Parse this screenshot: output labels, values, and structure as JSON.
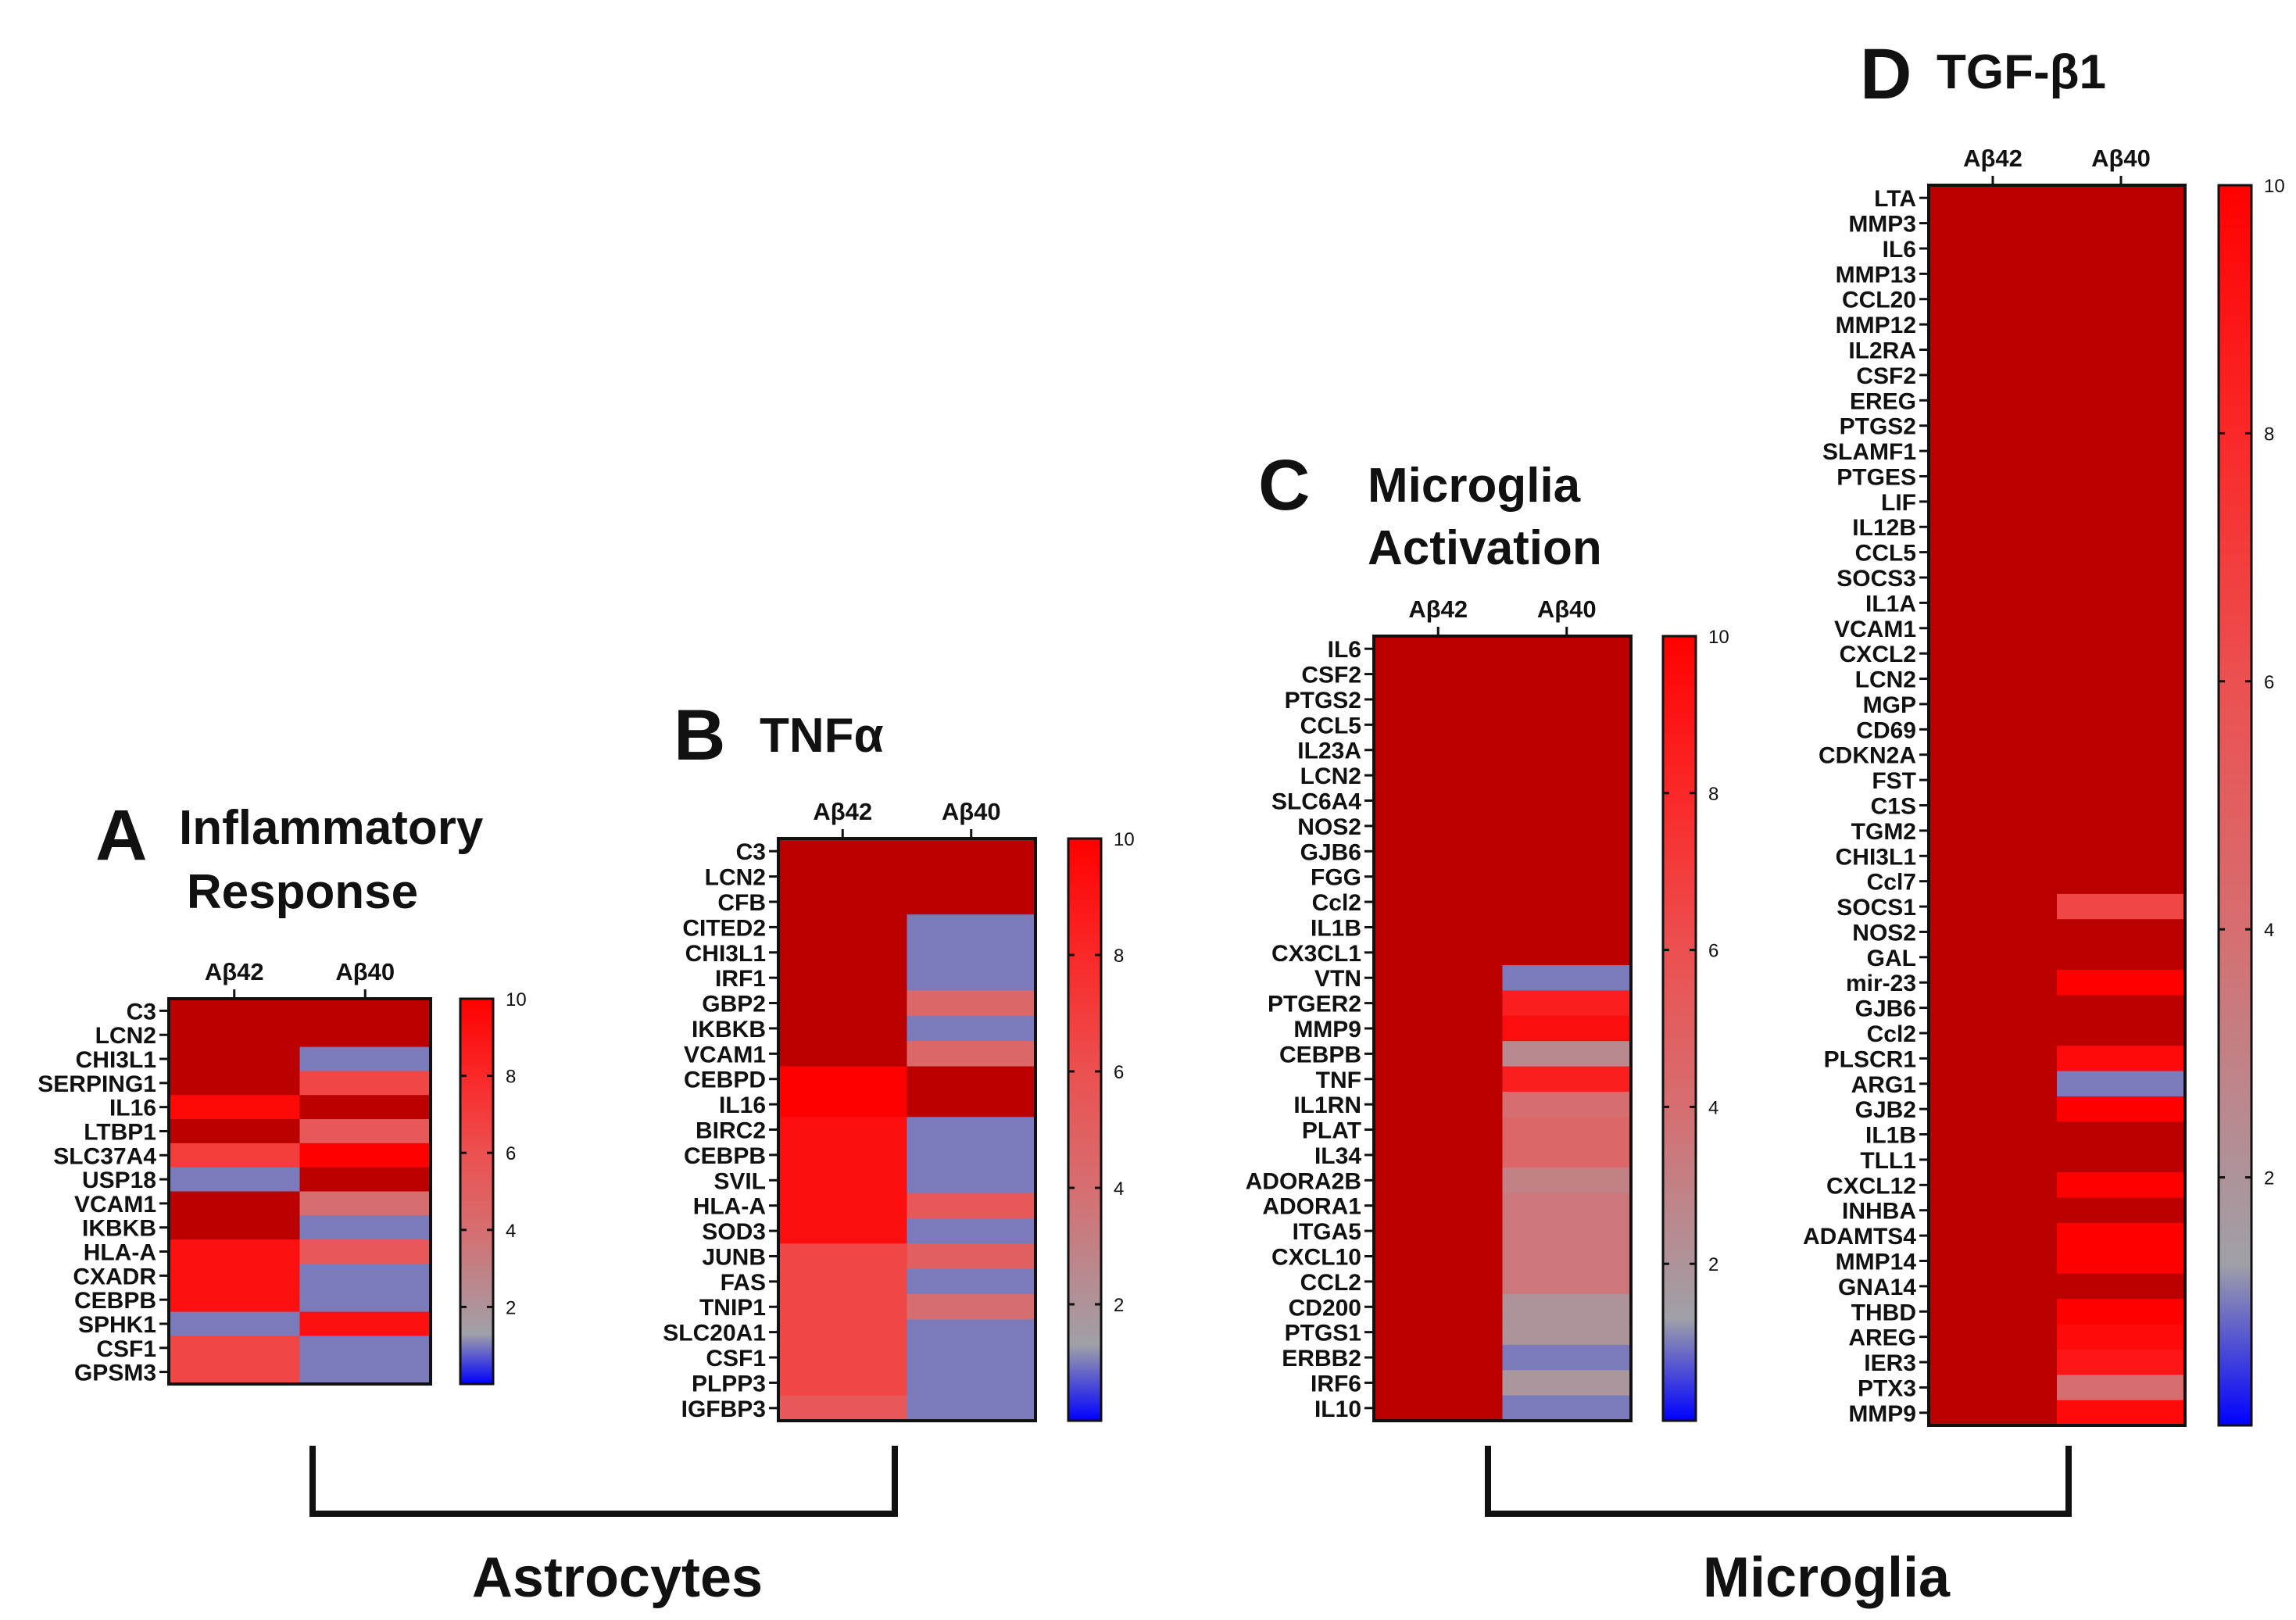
{
  "chart_data": {
    "type": "heatmap",
    "colorscale": {
      "stops": [
        [
          0,
          "#0000FF"
        ],
        [
          1.3,
          "#A0A0A8"
        ],
        [
          4,
          "#D66E70"
        ],
        [
          6,
          "#EC5050"
        ],
        [
          8,
          "#FA2828"
        ],
        [
          10,
          "#FF0000"
        ]
      ],
      "above_range_color": "#BA0000",
      "range": [
        0,
        10
      ],
      "ticks": [
        "2",
        "4",
        "6",
        "8",
        "10"
      ]
    },
    "columns": [
      "Aβ42",
      "Aβ40"
    ],
    "panels": [
      {
        "letter": "A",
        "title_lines": [
          "Inflammatory",
          "Response"
        ],
        "genes": [
          "C3",
          "LCN2",
          "CHI3L1",
          "SERPING1",
          "IL16",
          "LTBP1",
          "SLC37A4",
          "USP18",
          "VCAM1",
          "IKBKB",
          "HLA-A",
          "CXADR",
          "CEBPB",
          "SPHK1",
          "CSF1",
          "GPSM3"
        ],
        "values": {
          "Aβ42": [
            12,
            12,
            12,
            12,
            9.6,
            12,
            7,
            1,
            12,
            12,
            9.2,
            9.2,
            9.2,
            1,
            6.5,
            6.5
          ],
          "Aβ40": [
            12,
            12,
            1,
            6.5,
            12,
            5.5,
            10,
            12,
            4,
            1,
            5.5,
            1,
            1,
            9.2,
            1,
            1
          ]
        }
      },
      {
        "letter": "B",
        "title_lines": [
          "TNFα"
        ],
        "genes": [
          "C3",
          "LCN2",
          "CFB",
          "CITED2",
          "CHI3L1",
          "IRF1",
          "GBP2",
          "IKBKB",
          "VCAM1",
          "CEBPD",
          "IL16",
          "BIRC2",
          "CEBPB",
          "SVIL",
          "HLA-A",
          "SOD3",
          "JUNB",
          "FAS",
          "TNIP1",
          "SLC20A1",
          "CSF1",
          "PLPP3",
          "IGFBP3"
        ],
        "values": {
          "Aβ42": [
            12,
            12,
            12,
            12,
            12,
            12,
            12,
            12,
            12,
            10,
            10,
            9.3,
            9.3,
            9.3,
            9.3,
            9.3,
            6.5,
            6.5,
            6.5,
            6.5,
            6.5,
            6.5,
            5.5
          ],
          "Aβ40": [
            12,
            12,
            12,
            1,
            1,
            1,
            4.5,
            1,
            4.5,
            12,
            12,
            1,
            1,
            1,
            5.5,
            1,
            5,
            1,
            4,
            1,
            1,
            1,
            1
          ]
        }
      },
      {
        "letter": "C",
        "title_lines": [
          "Microglia",
          "Activation"
        ],
        "genes": [
          "IL6",
          "CSF2",
          "PTGS2",
          "CCL5",
          "IL23A",
          "LCN2",
          "SLC6A4",
          "NOS2",
          "GJB6",
          "FGG",
          "Ccl2",
          "IL1B",
          "CX3CL1",
          "VTN",
          "PTGER2",
          "MMP9",
          "CEBPB",
          "TNF",
          "IL1RN",
          "PLAT",
          "IL34",
          "ADORA2B",
          "ADORA1",
          "ITGA5",
          "CXCL10",
          "CCL2",
          "CD200",
          "PTGS1",
          "ERBB2",
          "IRF6",
          "IL10"
        ],
        "values": {
          "Aβ42": [
            12,
            12,
            12,
            12,
            12,
            12,
            12,
            12,
            12,
            12,
            12,
            12,
            12,
            12,
            12,
            12,
            12,
            12,
            12,
            12,
            12,
            12,
            12,
            12,
            12,
            12,
            12,
            12,
            12,
            12,
            12
          ],
          "Aβ40": [
            12,
            12,
            12,
            12,
            12,
            12,
            12,
            12,
            12,
            12,
            12,
            12,
            12,
            1,
            8.5,
            9.3,
            2.5,
            8.5,
            4,
            4.5,
            4.5,
            3,
            3.5,
            3.5,
            3.5,
            3.5,
            2,
            2,
            1,
            1.8,
            1
          ]
        }
      },
      {
        "letter": "D",
        "title_lines": [
          "TGF-β1"
        ],
        "genes": [
          "LTA",
          "MMP3",
          "IL6",
          "MMP13",
          "CCL20",
          "MMP12",
          "IL2RA",
          "CSF2",
          "EREG",
          "PTGS2",
          "SLAMF1",
          "PTGES",
          "LIF",
          "IL12B",
          "CCL5",
          "SOCS3",
          "IL1A",
          "VCAM1",
          "CXCL2",
          "LCN2",
          "MGP",
          "CD69",
          "CDKN2A",
          "FST",
          "C1S",
          "TGM2",
          "CHI3L1",
          "Ccl7",
          "SOCS1",
          "NOS2",
          "GAL",
          "mir-23",
          "GJB6",
          "Ccl2",
          "PLSCR1",
          "ARG1",
          "GJB2",
          "IL1B",
          "TLL1",
          "CXCL12",
          "INHBA",
          "ADAMTS4",
          "MMP14",
          "GNA14",
          "THBD",
          "AREG",
          "IER3",
          "PTX3",
          "MMP9"
        ],
        "values": {
          "Aβ42": [
            12,
            12,
            12,
            12,
            12,
            12,
            12,
            12,
            12,
            12,
            12,
            12,
            12,
            12,
            12,
            12,
            12,
            12,
            12,
            12,
            12,
            12,
            12,
            12,
            12,
            12,
            12,
            12,
            12,
            12,
            12,
            12,
            12,
            12,
            12,
            12,
            12,
            12,
            12,
            12,
            12,
            12,
            12,
            12,
            12,
            12,
            12,
            12,
            12
          ],
          "Aβ40": [
            12,
            12,
            12,
            12,
            12,
            12,
            12,
            12,
            12,
            12,
            12,
            12,
            12,
            12,
            12,
            12,
            12,
            12,
            12,
            12,
            12,
            12,
            12,
            12,
            12,
            12,
            12,
            12,
            6.5,
            12,
            12,
            10,
            12,
            12,
            9.5,
            1,
            10,
            12,
            12,
            10,
            12,
            10,
            10,
            12,
            10,
            9.5,
            9,
            4,
            9.5
          ]
        }
      }
    ],
    "groups": [
      "Astrocytes",
      "Microglia"
    ]
  }
}
